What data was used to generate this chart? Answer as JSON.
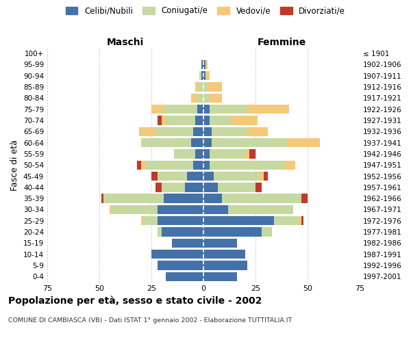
{
  "age_groups": [
    "0-4",
    "5-9",
    "10-14",
    "15-19",
    "20-24",
    "25-29",
    "30-34",
    "35-39",
    "40-44",
    "45-49",
    "50-54",
    "55-59",
    "60-64",
    "65-69",
    "70-74",
    "75-79",
    "80-84",
    "85-89",
    "90-94",
    "95-99",
    "100+"
  ],
  "birth_years": [
    "1997-2001",
    "1992-1996",
    "1987-1991",
    "1982-1986",
    "1977-1981",
    "1972-1976",
    "1967-1971",
    "1962-1966",
    "1957-1961",
    "1952-1956",
    "1947-1951",
    "1942-1946",
    "1937-1941",
    "1932-1936",
    "1927-1931",
    "1922-1926",
    "1917-1921",
    "1912-1916",
    "1907-1911",
    "1902-1906",
    "≤ 1901"
  ],
  "males": {
    "celibi": [
      18,
      22,
      25,
      15,
      20,
      22,
      22,
      19,
      9,
      8,
      5,
      4,
      6,
      5,
      4,
      3,
      0,
      0,
      1,
      1,
      0
    ],
    "coniugati": [
      0,
      0,
      0,
      0,
      2,
      7,
      22,
      29,
      11,
      14,
      23,
      10,
      24,
      18,
      14,
      16,
      3,
      2,
      1,
      0,
      0
    ],
    "vedovi": [
      0,
      0,
      0,
      0,
      0,
      1,
      1,
      0,
      0,
      0,
      2,
      0,
      0,
      8,
      2,
      6,
      3,
      2,
      0,
      0,
      0
    ],
    "divorziati": [
      0,
      0,
      0,
      0,
      0,
      0,
      0,
      1,
      3,
      3,
      2,
      0,
      0,
      0,
      2,
      0,
      0,
      0,
      0,
      0,
      0
    ]
  },
  "females": {
    "nubili": [
      16,
      21,
      20,
      16,
      28,
      34,
      12,
      9,
      7,
      5,
      3,
      3,
      4,
      4,
      3,
      3,
      0,
      0,
      1,
      1,
      0
    ],
    "coniugate": [
      0,
      0,
      0,
      0,
      5,
      12,
      31,
      38,
      18,
      22,
      36,
      17,
      36,
      17,
      10,
      18,
      3,
      2,
      0,
      0,
      0
    ],
    "vedove": [
      0,
      0,
      0,
      0,
      0,
      1,
      0,
      0,
      0,
      2,
      5,
      2,
      16,
      10,
      13,
      20,
      6,
      7,
      2,
      1,
      0
    ],
    "divorziate": [
      0,
      0,
      0,
      0,
      0,
      1,
      0,
      3,
      3,
      2,
      0,
      3,
      0,
      0,
      0,
      0,
      0,
      0,
      0,
      0,
      0
    ]
  },
  "colors": {
    "celibi": "#4472a8",
    "coniugati": "#c6d9a0",
    "vedovi": "#f5c97a",
    "divorziati": "#c0392b"
  },
  "xlim": 75,
  "title": "Popolazione per età, sesso e stato civile - 2002",
  "subtitle": "COMUNE DI CAMBIASCA (VB) - Dati ISTAT 1° gennaio 2002 - Elaborazione TUTTITALIA.IT",
  "ylabel_left": "Fasce di età",
  "xlabel_left": "Maschi",
  "xlabel_right": "Femmine",
  "legend_labels": [
    "Celibi/Nubili",
    "Coniugati/e",
    "Vedovi/e",
    "Divorziati/e"
  ],
  "background_color": "#ffffff",
  "grid_color": "#cccccc"
}
